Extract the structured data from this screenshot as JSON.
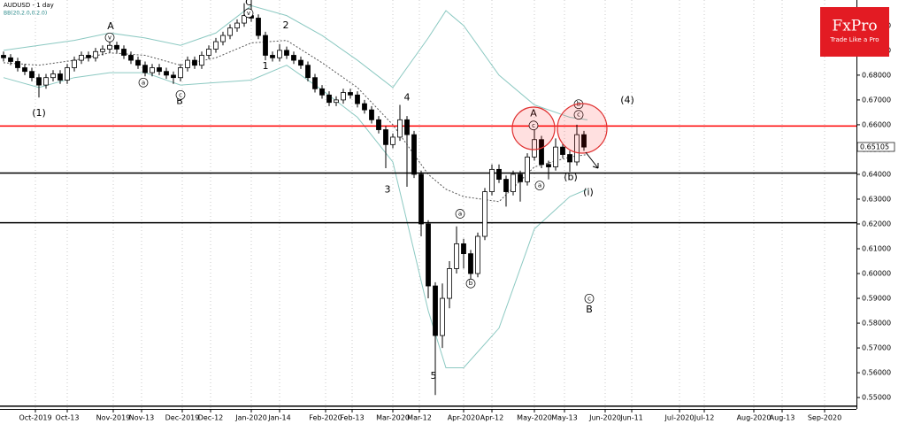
{
  "chart_data": {
    "type": "candlestick",
    "title": "AUDUSD - 1 day",
    "subtitle": "BB(20,2.0,0,2.0)",
    "brand": "FxPro",
    "tagline": "Trade Like a Pro",
    "last_price": 0.65105,
    "xlim": [
      0,
      242
    ],
    "ylim": [
      0.5454,
      0.7103
    ],
    "xticks": [
      {
        "value": 10,
        "label": "Oct-2019"
      },
      {
        "value": 19,
        "label": "Oct-13"
      },
      {
        "value": 32,
        "label": "Nov-2019"
      },
      {
        "value": 40,
        "label": "Nov-13"
      },
      {
        "value": 51.5,
        "label": "Dec-2019"
      },
      {
        "value": 59.5,
        "label": "Dec-12"
      },
      {
        "value": 71,
        "label": "Jan-2020"
      },
      {
        "value": 79,
        "label": "Jan-14"
      },
      {
        "value": 92,
        "label": "Feb-2020"
      },
      {
        "value": 99.5,
        "label": "Feb-13"
      },
      {
        "value": 111,
        "label": "Mar-2020"
      },
      {
        "value": 118.5,
        "label": "Mar-12"
      },
      {
        "value": 131,
        "label": "Apr-2020"
      },
      {
        "value": 139,
        "label": "Apr-12"
      },
      {
        "value": 151,
        "label": "May-2020"
      },
      {
        "value": 159.5,
        "label": "May-13"
      },
      {
        "value": 171,
        "label": "Jun-2020"
      },
      {
        "value": 178.5,
        "label": "Jun-11"
      },
      {
        "value": 192,
        "label": "Jul-2020"
      },
      {
        "value": 199,
        "label": "Jul-12"
      },
      {
        "value": 213,
        "label": "Aug-2020"
      },
      {
        "value": 221,
        "label": "Aug-13"
      },
      {
        "value": 233,
        "label": "Sep-2020"
      }
    ],
    "yticks": [
      {
        "value": 0.55,
        "label": "0.55000"
      },
      {
        "value": 0.56,
        "label": "0.56000"
      },
      {
        "value": 0.57,
        "label": "0.57000"
      },
      {
        "value": 0.58,
        "label": "0.58000"
      },
      {
        "value": 0.59,
        "label": "0.59000"
      },
      {
        "value": 0.6,
        "label": "0.60000"
      },
      {
        "value": 0.61,
        "label": "0.61000"
      },
      {
        "value": 0.62,
        "label": "0.62000"
      },
      {
        "value": 0.63,
        "label": "0.63000"
      },
      {
        "value": 0.64,
        "label": "0.64000"
      },
      {
        "value": 0.65,
        "label": "0.65000"
      },
      {
        "value": 0.66,
        "label": "0.66000"
      },
      {
        "value": 0.67,
        "label": "0.67000"
      },
      {
        "value": 0.68,
        "label": "0.68000"
      },
      {
        "value": 0.69,
        "label": "0.69000"
      },
      {
        "value": 0.7,
        "label": "0.70000"
      }
    ],
    "x": [
      1,
      3,
      5,
      7,
      9,
      11,
      13,
      15,
      17,
      19,
      21,
      23,
      25,
      27,
      29,
      31,
      33,
      35,
      37,
      39,
      41,
      43,
      45,
      47,
      49,
      51,
      53,
      55,
      57,
      59,
      61,
      63,
      65,
      67,
      69,
      71,
      73,
      75,
      77,
      79,
      81,
      83,
      85,
      87,
      89,
      91,
      93,
      95,
      97,
      99,
      101,
      103,
      105,
      107,
      109,
      111,
      113,
      115,
      117,
      119,
      121,
      123,
      125,
      127,
      129,
      131,
      133,
      135,
      137,
      139,
      141,
      143,
      145,
      147,
      149,
      151,
      153,
      155,
      157,
      159,
      161,
      163,
      165
    ],
    "open": [
      0.688,
      0.687,
      0.6855,
      0.683,
      0.6815,
      0.679,
      0.676,
      0.679,
      0.6805,
      0.678,
      0.683,
      0.686,
      0.688,
      0.687,
      0.6895,
      0.6905,
      0.692,
      0.6905,
      0.688,
      0.686,
      0.684,
      0.681,
      0.683,
      0.6815,
      0.68,
      0.679,
      0.683,
      0.686,
      0.684,
      0.688,
      0.6905,
      0.6935,
      0.696,
      0.699,
      0.701,
      0.704,
      0.703,
      0.696,
      0.688,
      0.687,
      0.69,
      0.688,
      0.686,
      0.684,
      0.679,
      0.6745,
      0.672,
      0.669,
      0.67,
      0.673,
      0.672,
      0.6685,
      0.666,
      0.662,
      0.658,
      0.652,
      0.655,
      0.662,
      0.656,
      0.64,
      0.62,
      0.595,
      0.575,
      0.59,
      0.602,
      0.612,
      0.608,
      0.6,
      0.615,
      0.633,
      0.642,
      0.638,
      0.633,
      0.64,
      0.637,
      0.647,
      0.654,
      0.644,
      0.643,
      0.651,
      0.648,
      0.645,
      0.656
    ],
    "high": [
      0.6895,
      0.6885,
      0.687,
      0.6845,
      0.683,
      0.6805,
      0.6805,
      0.682,
      0.682,
      0.6845,
      0.6875,
      0.6895,
      0.6895,
      0.691,
      0.692,
      0.6935,
      0.6935,
      0.692,
      0.6895,
      0.6875,
      0.6855,
      0.6845,
      0.6845,
      0.683,
      0.6815,
      0.6845,
      0.6875,
      0.6875,
      0.6895,
      0.692,
      0.695,
      0.6975,
      0.7005,
      0.7025,
      0.709,
      0.7135,
      0.7045,
      0.6975,
      0.6895,
      0.6925,
      0.6915,
      0.6895,
      0.6875,
      0.6855,
      0.6805,
      0.676,
      0.6735,
      0.6715,
      0.6745,
      0.6745,
      0.6735,
      0.67,
      0.6675,
      0.6635,
      0.6595,
      0.6565,
      0.668,
      0.6635,
      0.6575,
      0.6415,
      0.6215,
      0.5965,
      0.596,
      0.605,
      0.619,
      0.614,
      0.6095,
      0.6165,
      0.6345,
      0.644,
      0.644,
      0.6395,
      0.6415,
      0.6415,
      0.6485,
      0.658,
      0.6555,
      0.6455,
      0.6545,
      0.6525,
      0.6495,
      0.66,
      0.6575
    ],
    "low": [
      0.6855,
      0.684,
      0.6815,
      0.68,
      0.6775,
      0.671,
      0.6745,
      0.6775,
      0.6765,
      0.6765,
      0.6815,
      0.6845,
      0.6855,
      0.6855,
      0.688,
      0.689,
      0.689,
      0.6865,
      0.6845,
      0.6825,
      0.6795,
      0.6795,
      0.68,
      0.6785,
      0.6765,
      0.6775,
      0.6815,
      0.6825,
      0.6825,
      0.6865,
      0.689,
      0.692,
      0.6945,
      0.6975,
      0.6995,
      0.7015,
      0.6945,
      0.686,
      0.6855,
      0.6855,
      0.6865,
      0.6845,
      0.6825,
      0.6775,
      0.673,
      0.6705,
      0.6675,
      0.6675,
      0.6685,
      0.6705,
      0.667,
      0.6645,
      0.6605,
      0.6565,
      0.6425,
      0.6505,
      0.6535,
      0.635,
      0.6385,
      0.615,
      0.59,
      0.551,
      0.57,
      0.586,
      0.6,
      0.602,
      0.596,
      0.5985,
      0.6135,
      0.6315,
      0.6365,
      0.627,
      0.6315,
      0.629,
      0.6355,
      0.6455,
      0.6425,
      0.638,
      0.6415,
      0.6465,
      0.641,
      0.6435,
      0.6495
    ],
    "close": [
      0.687,
      0.6855,
      0.683,
      0.6815,
      0.679,
      0.676,
      0.679,
      0.6805,
      0.678,
      0.683,
      0.686,
      0.688,
      0.687,
      0.6895,
      0.6905,
      0.692,
      0.6905,
      0.688,
      0.686,
      0.684,
      0.681,
      0.683,
      0.6815,
      0.68,
      0.679,
      0.683,
      0.686,
      0.684,
      0.688,
      0.6905,
      0.6935,
      0.696,
      0.699,
      0.701,
      0.704,
      0.703,
      0.696,
      0.688,
      0.687,
      0.69,
      0.688,
      0.686,
      0.684,
      0.679,
      0.6745,
      0.672,
      0.669,
      0.67,
      0.673,
      0.672,
      0.6685,
      0.666,
      0.662,
      0.658,
      0.652,
      0.655,
      0.662,
      0.656,
      0.64,
      0.62,
      0.595,
      0.575,
      0.59,
      0.602,
      0.612,
      0.608,
      0.6,
      0.615,
      0.633,
      0.642,
      0.638,
      0.633,
      0.64,
      0.637,
      0.647,
      0.654,
      0.644,
      0.643,
      0.651,
      0.648,
      0.645,
      0.656,
      0.651
    ],
    "bands": {
      "x": [
        1,
        11,
        21,
        31,
        41,
        51,
        61,
        71,
        81,
        91,
        101,
        111,
        121,
        126,
        131,
        141,
        151,
        161,
        166
      ],
      "upper": [
        0.69,
        0.692,
        0.694,
        0.697,
        0.695,
        0.692,
        0.697,
        0.708,
        0.704,
        0.696,
        0.686,
        0.675,
        0.695,
        0.706,
        0.7,
        0.68,
        0.668,
        0.663,
        0.662
      ],
      "middle": [
        0.685,
        0.684,
        0.686,
        0.689,
        0.688,
        0.684,
        0.687,
        0.693,
        0.694,
        0.685,
        0.675,
        0.66,
        0.64,
        0.634,
        0.631,
        0.629,
        0.643,
        0.647,
        0.648
      ],
      "lower": [
        0.679,
        0.675,
        0.679,
        0.681,
        0.681,
        0.676,
        0.677,
        0.678,
        0.684,
        0.674,
        0.663,
        0.645,
        0.585,
        0.562,
        0.562,
        0.578,
        0.618,
        0.631,
        0.634
      ]
    },
    "levels": [
      {
        "value": 0.6595,
        "color": "#ff0000"
      },
      {
        "value": 0.6405,
        "color": "#000000"
      },
      {
        "value": 0.6205,
        "color": "#000000"
      },
      {
        "value": 0.5465,
        "color": "#000000"
      }
    ],
    "annotations": [
      {
        "text": "(1)",
        "x": 11,
        "y": 0.6647,
        "circled": false
      },
      {
        "text": "A",
        "x": 31.25,
        "y": 0.6996,
        "circled": false
      },
      {
        "text": "B",
        "x": 50.75,
        "y": 0.6694,
        "circled": false
      },
      {
        "text": "C",
        "x": 70.25,
        "y": 0.7093,
        "circled": false
      },
      {
        "text": "1",
        "x": 75,
        "y": 0.6836,
        "circled": false
      },
      {
        "text": "2",
        "x": 80.75,
        "y": 0.7,
        "circled": false
      },
      {
        "text": "3",
        "x": 109.5,
        "y": 0.6337,
        "circled": false
      },
      {
        "text": "4",
        "x": 115,
        "y": 0.6708,
        "circled": false
      },
      {
        "text": "5",
        "x": 122.5,
        "y": 0.5586,
        "circled": false
      },
      {
        "text": "A",
        "x": 150.75,
        "y": 0.6644,
        "circled": false
      },
      {
        "text": "(4)",
        "x": 177.25,
        "y": 0.6697,
        "circled": false
      },
      {
        "text": "B",
        "x": 166.5,
        "y": 0.5853,
        "circled": false
      },
      {
        "text": "(b)",
        "x": 161.25,
        "y": 0.6387,
        "circled": false
      },
      {
        "text": "(i)",
        "x": 166.25,
        "y": 0.6327,
        "circled": false
      },
      {
        "text": "v",
        "x": 31,
        "y": 0.6952,
        "circled": true
      },
      {
        "text": "v",
        "x": 70.25,
        "y": 0.705,
        "circled": true
      },
      {
        "text": "a",
        "x": 40.5,
        "y": 0.677,
        "circled": true
      },
      {
        "text": "c",
        "x": 51,
        "y": 0.672,
        "circled": true
      },
      {
        "text": "a",
        "x": 130,
        "y": 0.6241,
        "circled": true
      },
      {
        "text": "b",
        "x": 133,
        "y": 0.596,
        "circled": true
      },
      {
        "text": "a",
        "x": 152.5,
        "y": 0.6355,
        "circled": true
      },
      {
        "text": "c",
        "x": 150.75,
        "y": 0.6597,
        "circled": true
      },
      {
        "text": "b",
        "x": 163.5,
        "y": 0.6683,
        "circled": true
      },
      {
        "text": "c",
        "x": 163.5,
        "y": 0.664,
        "circled": true
      },
      {
        "text": "c",
        "x": 166.5,
        "y": 0.5899,
        "circled": true
      }
    ]
  }
}
